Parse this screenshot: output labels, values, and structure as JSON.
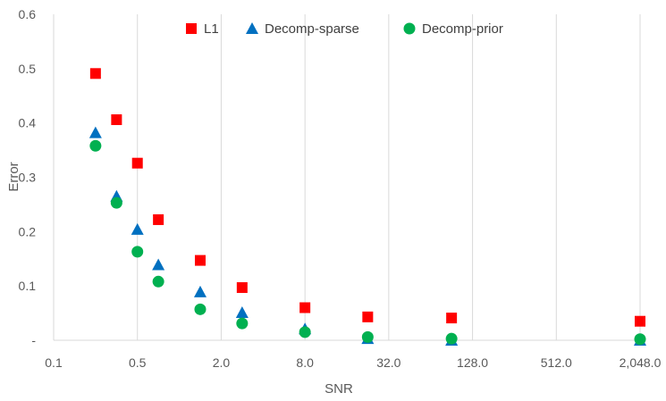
{
  "chart_data": {
    "type": "scatter",
    "title": "",
    "xlabel": "SNR",
    "ylabel": "Error",
    "x_scale": "log2",
    "xlim": [
      0.1,
      2048.0
    ],
    "ylim": [
      0,
      0.6
    ],
    "x_ticks": [
      {
        "value": 0.125,
        "label": "0.1"
      },
      {
        "value": 0.5,
        "label": "0.5"
      },
      {
        "value": 2.0,
        "label": "2.0"
      },
      {
        "value": 8.0,
        "label": "8.0"
      },
      {
        "value": 32.0,
        "label": "32.0"
      },
      {
        "value": 128.0,
        "label": "128.0"
      },
      {
        "value": 512.0,
        "label": "512.0"
      },
      {
        "value": 2048.0,
        "label": "2,048.0"
      }
    ],
    "y_ticks": [
      {
        "value": 0,
        "label": "-"
      },
      {
        "value": 0.1,
        "label": "0.1"
      },
      {
        "value": 0.2,
        "label": "0.2"
      },
      {
        "value": 0.3,
        "label": "0.3"
      },
      {
        "value": 0.4,
        "label": "0.4"
      },
      {
        "value": 0.5,
        "label": "0.5"
      },
      {
        "value": 0.6,
        "label": "0.6"
      }
    ],
    "grid": {
      "vertical": true,
      "horizontal": false
    },
    "legend_position": "top",
    "series": [
      {
        "name": "L1",
        "marker": "square",
        "color": "#ff0000",
        "x": [
          0.25,
          0.354,
          0.5,
          0.707,
          1.414,
          2.828,
          8.0,
          22.6,
          90.5,
          2048.0
        ],
        "values": [
          0.491,
          0.406,
          0.326,
          0.222,
          0.147,
          0.097,
          0.06,
          0.043,
          0.041,
          0.035
        ]
      },
      {
        "name": "Decomp-sparse",
        "marker": "triangle",
        "color": "#0070c0",
        "x": [
          0.25,
          0.354,
          0.5,
          0.707,
          1.414,
          2.828,
          8.0,
          22.6,
          90.5,
          2048.0
        ],
        "values": [
          0.382,
          0.265,
          0.204,
          0.139,
          0.089,
          0.051,
          0.021,
          0.003,
          0.0,
          0.0
        ]
      },
      {
        "name": "Decomp-prior",
        "marker": "circle",
        "color": "#00b050",
        "x": [
          0.25,
          0.354,
          0.5,
          0.707,
          1.414,
          2.828,
          8.0,
          22.6,
          90.5,
          2048.0
        ],
        "values": [
          0.358,
          0.253,
          0.163,
          0.108,
          0.057,
          0.031,
          0.015,
          0.006,
          0.003,
          0.002
        ]
      }
    ]
  }
}
